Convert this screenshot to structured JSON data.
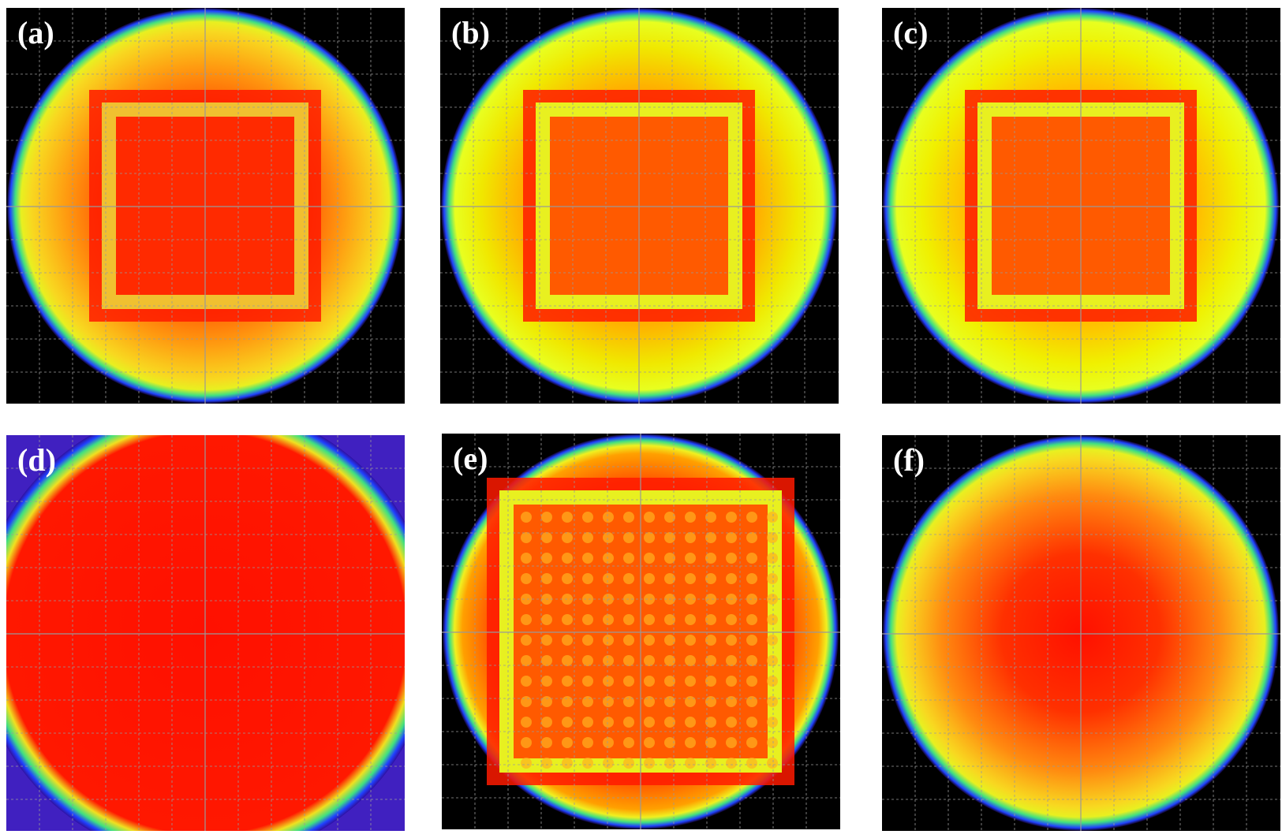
{
  "panels": [
    {
      "label": "(a)"
    },
    {
      "label": "(b)"
    },
    {
      "label": "(c)"
    },
    {
      "label": "(d)"
    },
    {
      "label": "(e)"
    },
    {
      "label": "(f)"
    }
  ]
}
